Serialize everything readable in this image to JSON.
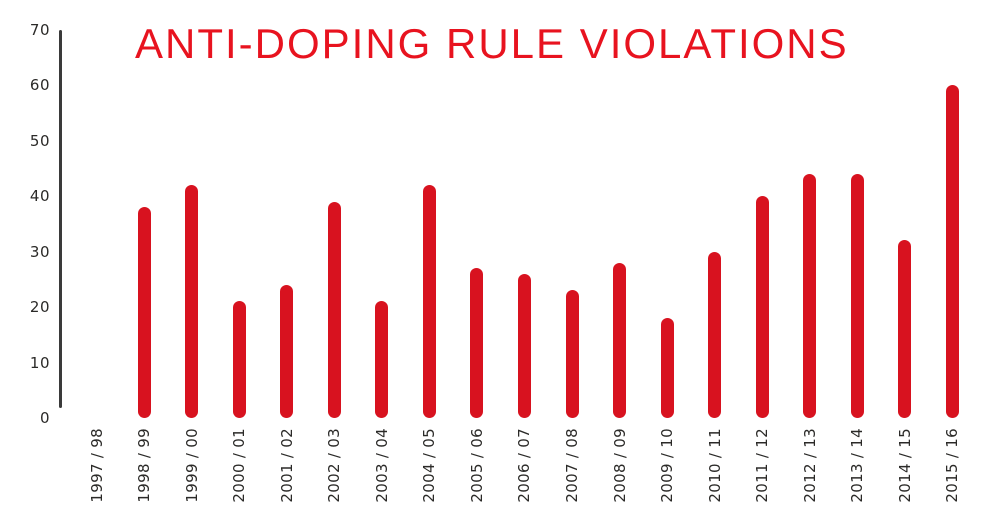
{
  "title": "ANTI-DOPING RULE VIOLATIONS",
  "colors": {
    "title_red": "#e8131f",
    "bar_red": "#d8121f",
    "axis_line": "#3a3a3a",
    "label_text": "#2b2a28"
  },
  "chart_data": {
    "type": "bar",
    "title": "ANTI-DOPING RULE VIOLATIONS",
    "categories": [
      "1997 / 98",
      "1998 / 99",
      "1999 / 00",
      "2000 / 01",
      "2001 / 02",
      "2002 / 03",
      "2003 / 04",
      "2004 / 05",
      "2005 / 06",
      "2006 / 07",
      "2007 / 08",
      "2008 / 09",
      "2009 / 10",
      "2010 / 11",
      "2011 / 12",
      "2012 / 13",
      "2013 / 14",
      "2014 / 15",
      "2015 / 16"
    ],
    "values": [
      0,
      38,
      42,
      21,
      24,
      39,
      21,
      42,
      27,
      26,
      23,
      28,
      18,
      30,
      40,
      44,
      44,
      32,
      60
    ],
    "xlabel": "",
    "ylabel": "",
    "ylim": [
      0,
      70
    ],
    "yticks": [
      0,
      10,
      20,
      30,
      40,
      50,
      60,
      70
    ],
    "grid": false,
    "legend": "none",
    "bar_color": "#d8121f",
    "bar_shape": "rounded-caps"
  }
}
